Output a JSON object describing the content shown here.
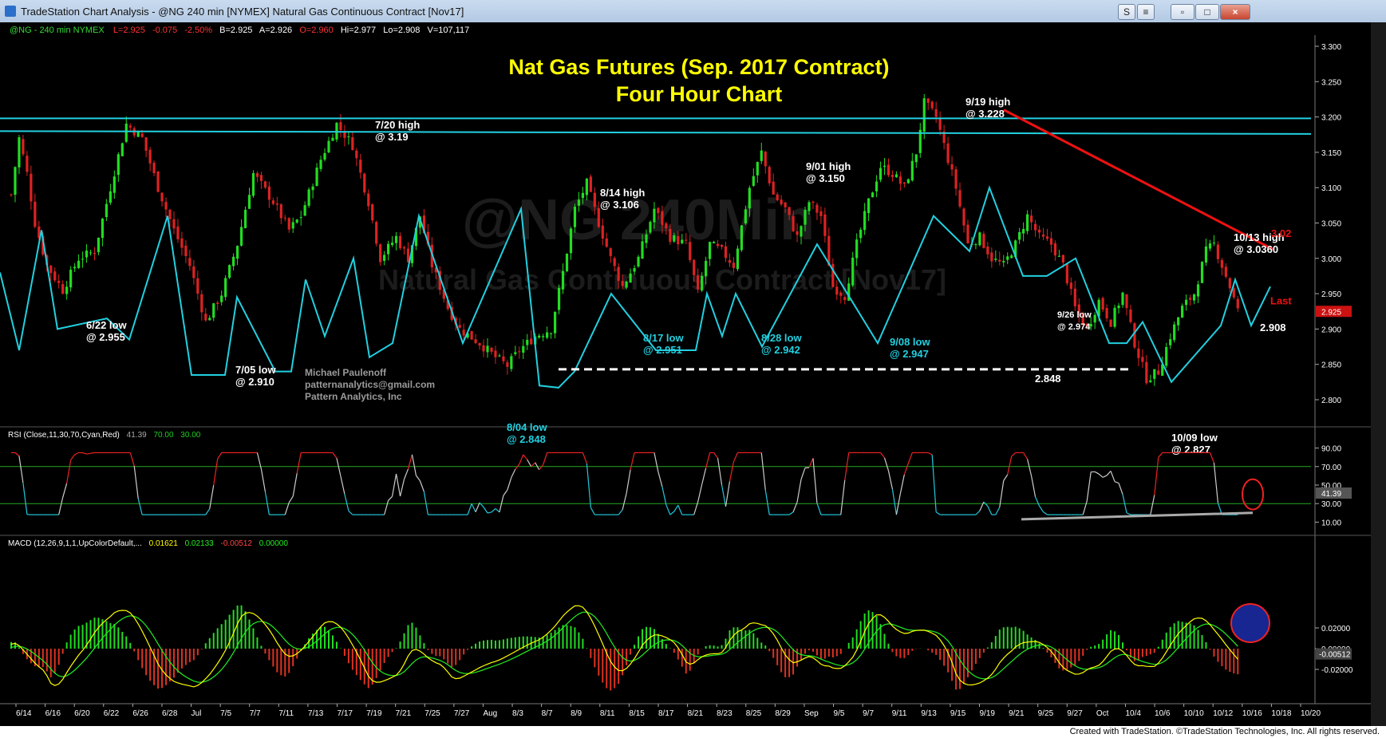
{
  "window": {
    "title": "TradeStation Chart Analysis - @NG 240 min [NYMEX] Natural Gas Continuous Contract [Nov17]",
    "buttons": [
      "S",
      "≡",
      "▫",
      "□",
      "×"
    ]
  },
  "quote_line": {
    "symbol": "@NG - 240 min  NYMEX",
    "last": "L=2.925",
    "change": "-0.075",
    "pct": "-2.50%",
    "bid": "B=2.925",
    "ask": "A=2.926",
    "open": "O=2.960",
    "high": "Hi=2.977",
    "low": "Lo=2.908",
    "volume": "V=107,117"
  },
  "watermark": {
    "line1": "@NG 240Min",
    "line2": "Natural Gas Continuous Contract [Nov17]"
  },
  "colors": {
    "background": "#000000",
    "up_bar": "#22dd22",
    "down_bar": "#dd2222",
    "cyan": "#22d0e0",
    "title_yellow": "#ffff00",
    "resistance_red": "#ee1111"
  },
  "title": {
    "line1": "Nat Gas Futures (Sep. 2017 Contract)",
    "line2": "Four Hour Chart"
  },
  "author": {
    "name": "Michael Paulenoff",
    "email": "patternanalytics@gmail.com",
    "company": "Pattern Analytics, Inc"
  },
  "chart_data": [
    {
      "type": "candlestick",
      "panel": "price",
      "ylim": [
        2.76,
        3.32
      ],
      "yticks": [
        "3.300",
        "3.250",
        "3.200",
        "3.150",
        "3.100",
        "3.050",
        "3.000",
        "2.950",
        "2.900",
        "2.850",
        "2.800"
      ],
      "x_dates": [
        "6/14",
        "6/16",
        "6/20",
        "6/22",
        "6/26",
        "6/28",
        "Jul",
        "7/5",
        "7/7",
        "7/11",
        "7/13",
        "7/17",
        "7/19",
        "7/21",
        "7/25",
        "7/27",
        "Aug",
        "8/3",
        "8/7",
        "8/9",
        "8/11",
        "8/15",
        "8/17",
        "8/21",
        "8/23",
        "8/25",
        "8/29",
        "Sep",
        "9/5",
        "9/7",
        "9/11",
        "9/13",
        "9/15",
        "9/19",
        "9/21",
        "9/25",
        "9/27",
        "Oct",
        "10/4",
        "10/6",
        "10/10",
        "10/12",
        "10/16",
        "10/18",
        "10/20"
      ],
      "path_closes": [
        [
          0,
          3.09
        ],
        [
          2,
          3.17
        ],
        [
          4,
          3.12
        ],
        [
          6,
          3.05
        ],
        [
          9,
          2.99
        ],
        [
          13,
          2.955
        ],
        [
          17,
          3.0
        ],
        [
          21,
          3.01
        ],
        [
          25,
          3.1
        ],
        [
          29,
          3.19
        ],
        [
          33,
          3.17
        ],
        [
          37,
          3.1
        ],
        [
          41,
          3.04
        ],
        [
          45,
          2.99
        ],
        [
          49,
          2.91
        ],
        [
          53,
          2.95
        ],
        [
          57,
          3.02
        ],
        [
          61,
          3.12
        ],
        [
          66,
          3.08
        ],
        [
          70,
          3.04
        ],
        [
          73,
          3.06
        ],
        [
          78,
          3.14
        ],
        [
          82,
          3.19
        ],
        [
          86,
          3.16
        ],
        [
          90,
          3.08
        ],
        [
          93,
          3.0
        ],
        [
          97,
          3.03
        ],
        [
          100,
          3.0
        ],
        [
          103,
          3.06
        ],
        [
          106,
          2.99
        ],
        [
          110,
          2.93
        ],
        [
          113,
          2.9
        ],
        [
          118,
          2.88
        ],
        [
          122,
          2.86
        ],
        [
          125,
          2.848
        ],
        [
          128,
          2.87
        ],
        [
          132,
          2.89
        ],
        [
          136,
          2.9
        ],
        [
          139,
          2.98
        ],
        [
          142,
          3.07
        ],
        [
          145,
          3.106
        ],
        [
          148,
          3.05
        ],
        [
          151,
          3.0
        ],
        [
          154,
          2.96
        ],
        [
          158,
          3.0
        ],
        [
          162,
          3.07
        ],
        [
          166,
          3.03
        ],
        [
          170,
          3.02
        ],
        [
          173,
          2.95
        ],
        [
          176,
          3.02
        ],
        [
          179,
          3.01
        ],
        [
          182,
          2.99
        ],
        [
          186,
          3.1
        ],
        [
          189,
          3.15
        ],
        [
          192,
          3.09
        ],
        [
          195,
          3.07
        ],
        [
          198,
          3.03
        ],
        [
          201,
          3.08
        ],
        [
          204,
          3.06
        ],
        [
          207,
          2.96
        ],
        [
          210,
          2.947
        ],
        [
          213,
          3.02
        ],
        [
          216,
          3.08
        ],
        [
          219,
          3.13
        ],
        [
          222,
          3.12
        ],
        [
          225,
          3.1
        ],
        [
          228,
          3.15
        ],
        [
          230,
          3.22
        ],
        [
          233,
          3.2
        ],
        [
          236,
          3.14
        ],
        [
          238,
          3.1
        ],
        [
          241,
          3.02
        ],
        [
          244,
          3.03
        ],
        [
          247,
          3.0
        ],
        [
          250,
          2.99
        ],
        [
          253,
          3.02
        ],
        [
          256,
          3.06
        ],
        [
          259,
          3.03
        ],
        [
          262,
          3.02
        ],
        [
          265,
          2.99
        ],
        [
          268,
          2.93
        ],
        [
          271,
          2.9
        ],
        [
          274,
          2.94
        ],
        [
          277,
          2.91
        ],
        [
          280,
          2.95
        ],
        [
          283,
          2.88
        ],
        [
          286,
          2.83
        ],
        [
          289,
          2.84
        ],
        [
          292,
          2.89
        ],
        [
          295,
          2.93
        ],
        [
          298,
          2.95
        ],
        [
          301,
          3.01
        ],
        [
          303,
          3.02
        ],
        [
          305,
          2.99
        ],
        [
          307,
          2.96
        ],
        [
          309,
          2.925
        ]
      ],
      "annotations": [
        {
          "label": "7/20 high",
          "value": "@ 3.19"
        },
        {
          "label": "8/14 high",
          "value": "@ 3.106"
        },
        {
          "label": "9/01 high",
          "value": "@ 3.150"
        },
        {
          "label": "9/19 high",
          "value": "@ 3.228"
        },
        {
          "label": "10/13 high",
          "value": "@ 3.0360"
        },
        {
          "label": "6/22 low",
          "value": "@ 2.955"
        },
        {
          "label": "7/05 low",
          "value": "@ 2.910"
        },
        {
          "label": "8/04 low",
          "value": "@ 2.848"
        },
        {
          "label": "8/17 low",
          "value": "@ 2.951"
        },
        {
          "label": "8/28 low",
          "value": "@ 2.942"
        },
        {
          "label": "9/08 low",
          "value": "@ 2.947"
        },
        {
          "label": "9/26 low",
          "value": "@ 2.974"
        },
        {
          "label": "10/09 low",
          "value": "@ 2.827"
        }
      ],
      "lines": {
        "support": "2.848",
        "resistance": "3.02",
        "last_label": "Last",
        "last_value": "2.925",
        "low_value": "2.908"
      }
    },
    {
      "type": "line",
      "panel": "rsi",
      "title": "RSI (Close,11,30,70,Cyan,Red)",
      "values": {
        "rsi": "41.39",
        "ob": "70.00",
        "os": "30.00"
      },
      "ylim": [
        0,
        100
      ],
      "yticks": [
        "90.00",
        "70.00",
        "50.00",
        "41.39",
        "30.00",
        "10.00"
      ]
    },
    {
      "type": "bar",
      "panel": "macd",
      "title": "MACD (12,26,9,1,1,UpColorDefault,...",
      "values": {
        "macd": "0.01621",
        "signal": "0.02133",
        "diff": "-0.00512",
        "zero": "0.00000"
      },
      "yticks": [
        "0.02000",
        "0.00000",
        "-0.00512",
        "-0.02000"
      ]
    }
  ],
  "footer": "Created with TradeStation. ©TradeStation Technologies, Inc. All rights reserved."
}
